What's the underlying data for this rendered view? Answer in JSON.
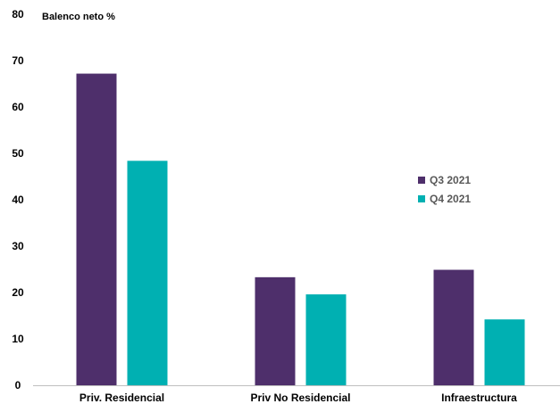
{
  "chart_data": {
    "type": "bar",
    "title": "",
    "ylabel": "Balenco neto %",
    "xlabel": "",
    "categories": [
      "Priv. Residencial",
      "Priv No Residencial",
      "Infraestructura"
    ],
    "series": [
      {
        "name": "Q3 2021",
        "values": [
          67.2,
          23.3,
          24.9
        ],
        "color": "#4e2f6b"
      },
      {
        "name": "Q4 2021",
        "values": [
          48.4,
          19.6,
          14.2
        ],
        "color": "#00b0b2"
      }
    ],
    "ylim": [
      0,
      80
    ],
    "yticks": [
      0,
      10,
      20,
      30,
      40,
      50,
      60,
      70,
      80
    ],
    "grid": false,
    "legend_position": "right"
  }
}
